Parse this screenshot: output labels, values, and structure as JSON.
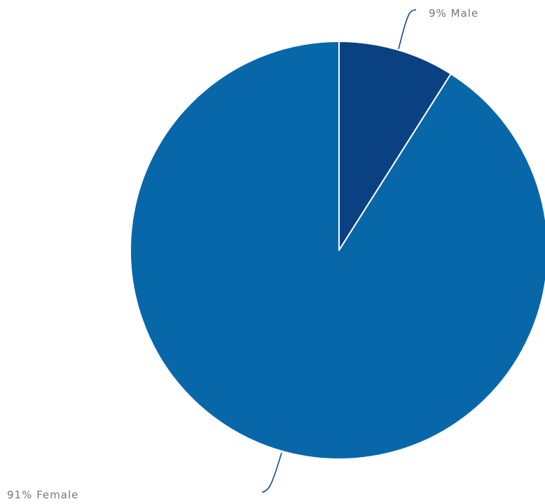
{
  "chart_data": {
    "type": "pie",
    "categories": [
      "Male",
      "Female"
    ],
    "values": [
      9,
      91
    ],
    "labels": [
      "9% Male",
      "91% Female"
    ],
    "colors": [
      "#0a4182",
      "#0767a9"
    ],
    "label_color": "#777777",
    "leader_line_color": "#0a4182",
    "slice_border_color": "#ffffff"
  }
}
